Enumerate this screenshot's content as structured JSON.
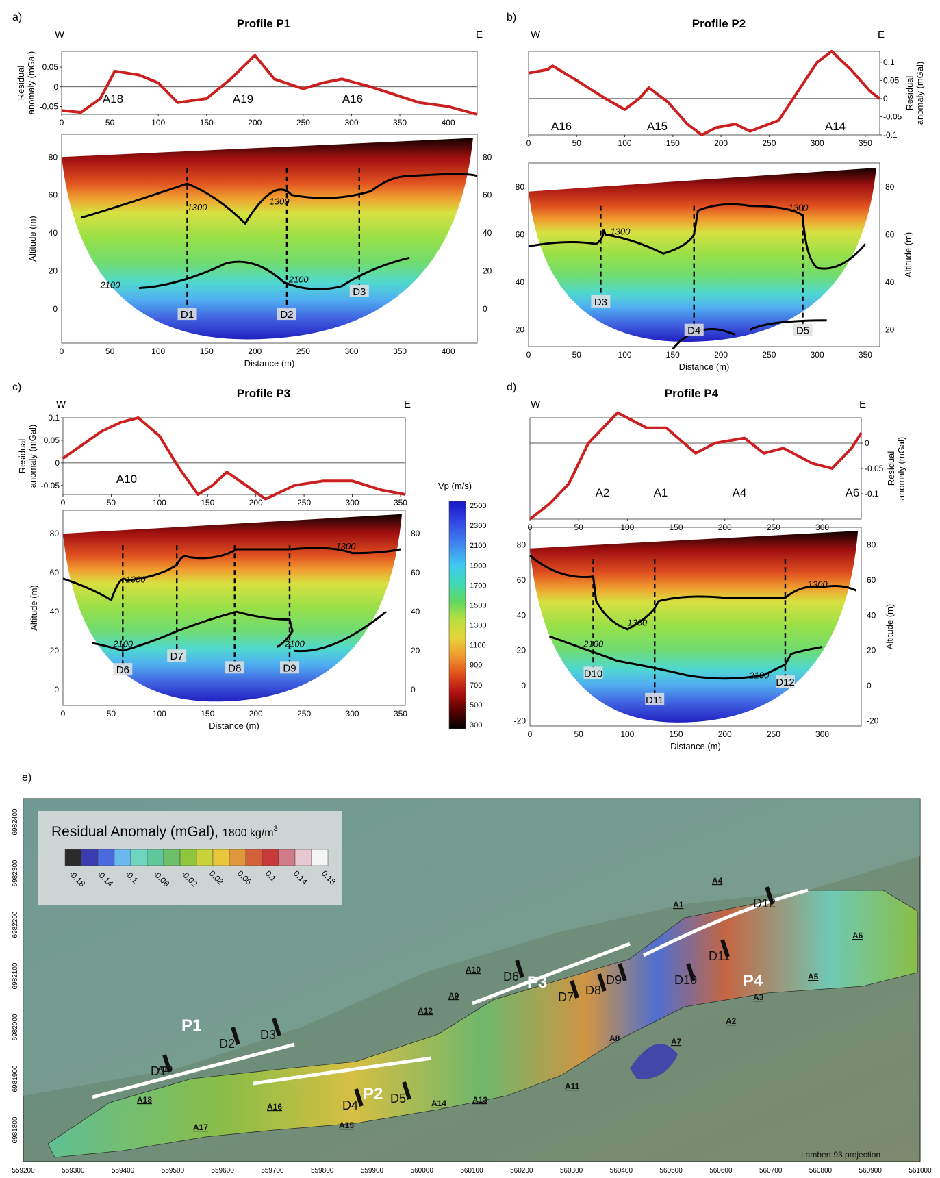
{
  "panels": [
    {
      "letter": "a)",
      "title": "Profile P1",
      "west": "W",
      "east": "E",
      "grav_ylabel": "Residual anomaly (mGal)",
      "grav_yticks": [
        "0.05",
        "0",
        "-0.05"
      ],
      "grav_xticks": [
        "0",
        "50",
        "100",
        "150",
        "200",
        "250",
        "300",
        "350",
        "400"
      ],
      "anomalies": [
        "A18",
        "A19",
        "A16"
      ],
      "sec_yticks": [
        "80",
        "60",
        "40",
        "20",
        "0"
      ],
      "sec_xticks": [
        "0",
        "50",
        "100",
        "150",
        "200",
        "250",
        "300",
        "350",
        "400"
      ],
      "sec_ylabel": "Altitude (m)",
      "sec_xlabel": "Distance (m)",
      "iso_labels": [
        "1300",
        "1300",
        "2100",
        "2100"
      ],
      "discs": [
        "D1",
        "D2",
        "D3"
      ]
    },
    {
      "letter": "b)",
      "title": "Profile P2",
      "west": "W",
      "east": "E",
      "grav_ylabel": "Residual anomaly (mGal)",
      "grav_yticks": [
        "0.1",
        "0.05",
        "0",
        "-0.05",
        "-0.1"
      ],
      "grav_xticks": [
        "0",
        "50",
        "100",
        "150",
        "200",
        "250",
        "300",
        "350"
      ],
      "anomalies": [
        "A16",
        "A15",
        "A14"
      ],
      "sec_yticks": [
        "80",
        "60",
        "40",
        "20"
      ],
      "sec_xticks": [
        "0",
        "50",
        "100",
        "150",
        "200",
        "250",
        "300",
        "350"
      ],
      "sec_ylabel": "Altitude (m)",
      "sec_xlabel": "Distance (m)",
      "iso_labels": [
        "1300",
        "1300"
      ],
      "discs": [
        "D3",
        "D4",
        "D5"
      ]
    },
    {
      "letter": "c)",
      "title": "Profile P3",
      "west": "W",
      "east": "E",
      "grav_ylabel": "Residual anomaly (mGal)",
      "grav_yticks": [
        "0.1",
        "0.05",
        "0",
        "-0.05"
      ],
      "grav_xticks": [
        "0",
        "50",
        "100",
        "150",
        "200",
        "250",
        "300",
        "350"
      ],
      "anomalies": [
        "A10"
      ],
      "sec_yticks": [
        "80",
        "60",
        "40",
        "20",
        "0"
      ],
      "sec_xticks": [
        "0",
        "50",
        "100",
        "150",
        "200",
        "250",
        "300",
        "350"
      ],
      "sec_ylabel": "Altitude (m)",
      "sec_xlabel": "Distance (m)",
      "iso_labels": [
        "1300",
        "1300",
        "2100",
        "2100"
      ],
      "discs": [
        "D6",
        "D7",
        "D8",
        "D9"
      ]
    },
    {
      "letter": "d)",
      "title": "Profile P4",
      "west": "W",
      "east": "E",
      "grav_ylabel": "Residual anomaly (mGal)",
      "grav_yticks": [
        "0",
        "-0.05",
        "-0.1"
      ],
      "grav_xticks": [
        "0",
        "50",
        "100",
        "150",
        "200",
        "250",
        "300"
      ],
      "anomalies": [
        "A2",
        "A1",
        "A4",
        "A6"
      ],
      "sec_yticks": [
        "80",
        "60",
        "40",
        "20",
        "0",
        "-20"
      ],
      "sec_xticks": [
        "0",
        "50",
        "100",
        "150",
        "200",
        "250",
        "300"
      ],
      "sec_ylabel": "Altitude (m)",
      "sec_xlabel": "Distance (m)",
      "iso_labels": [
        "1300",
        "1300",
        "2100",
        "2100"
      ],
      "discs": [
        "D10",
        "D11",
        "D12"
      ]
    }
  ],
  "colorbar": {
    "title": "Vp (m/s)",
    "ticks": [
      "2500",
      "2300",
      "2100",
      "1900",
      "1700",
      "1500",
      "1300",
      "1100",
      "900",
      "700",
      "500",
      "300"
    ]
  },
  "map": {
    "letter": "e)",
    "legend_title": "Residual Anomaly (mGal),",
    "legend_density": "1800 kg/m",
    "legend_sup": "3",
    "legend_ticks": [
      "-0.18",
      "-0.14",
      "-0.1",
      "-0.06",
      "-0.02",
      "0.02",
      "0.06",
      "0.1",
      "0.14",
      "0.18"
    ],
    "legend_colors": [
      "#2b2b2b",
      "#3b3bb0",
      "#4a6ae0",
      "#69b8ee",
      "#6fd4c0",
      "#5fc89a",
      "#6fbf6a",
      "#8ec63f",
      "#c8d23a",
      "#e8c83a",
      "#e0963a",
      "#d4603a",
      "#c83a3a",
      "#d07a8a",
      "#e8c8d0",
      "#f5f5f5"
    ],
    "x_ticks": [
      "559200",
      "559300",
      "559400",
      "559500",
      "559600",
      "559700",
      "559800",
      "559900",
      "560000",
      "560100",
      "560200",
      "560300",
      "560400",
      "560500",
      "560600",
      "560700",
      "560800",
      "560900",
      "561000"
    ],
    "y_ticks": [
      "6982400",
      "6982300",
      "6982200",
      "6982100",
      "6982000",
      "6981900",
      "6981800"
    ],
    "profile_labels": [
      "P1",
      "P2",
      "P3",
      "P4"
    ],
    "disc_labels": [
      "D1",
      "D2",
      "D3",
      "D4",
      "D5",
      "D6",
      "D7",
      "D8",
      "D9",
      "D10",
      "D11",
      "D12"
    ],
    "anomaly_labels": [
      "A1",
      "A2",
      "A3",
      "A4",
      "A5",
      "A6",
      "A7",
      "A8",
      "A9",
      "A10",
      "A11",
      "A12",
      "A13",
      "A14",
      "A15",
      "A16",
      "A17",
      "A18",
      "A19"
    ],
    "projection": "Lambert 93 projection"
  },
  "chart_data": [
    {
      "type": "line",
      "title": "Profile P1",
      "ylabel": "Residual anomaly (mGal)",
      "xlim": [
        0,
        430
      ],
      "ylim": [
        -0.07,
        0.09
      ],
      "series": [
        {
          "values": [
            [
              0,
              -0.06
            ],
            [
              20,
              -0.065
            ],
            [
              40,
              -0.03
            ],
            [
              55,
              0.04
            ],
            [
              80,
              0.03
            ],
            [
              100,
              0.01
            ],
            [
              120,
              -0.04
            ],
            [
              150,
              -0.03
            ],
            [
              175,
              0.02
            ],
            [
              200,
              0.08
            ],
            [
              220,
              0.02
            ],
            [
              250,
              -0.005
            ],
            [
              270,
              0.01
            ],
            [
              290,
              0.02
            ],
            [
              320,
              0.0
            ],
            [
              345,
              -0.02
            ],
            [
              370,
              -0.04
            ],
            [
              400,
              -0.05
            ],
            [
              430,
              -0.07
            ]
          ]
        }
      ]
    },
    {
      "type": "line",
      "title": "Profile P2",
      "ylabel": "Residual anomaly (mGal)",
      "xlim": [
        0,
        365
      ],
      "ylim": [
        -0.1,
        0.13
      ],
      "series": [
        {
          "values": [
            [
              0,
              0.07
            ],
            [
              20,
              0.08
            ],
            [
              25,
              0.09
            ],
            [
              50,
              0.05
            ],
            [
              80,
              0.0
            ],
            [
              100,
              -0.03
            ],
            [
              115,
              0.0
            ],
            [
              125,
              0.03
            ],
            [
              145,
              -0.01
            ],
            [
              165,
              -0.07
            ],
            [
              180,
              -0.1
            ],
            [
              195,
              -0.08
            ],
            [
              215,
              -0.07
            ],
            [
              230,
              -0.09
            ],
            [
              260,
              -0.06
            ],
            [
              280,
              0.02
            ],
            [
              300,
              0.1
            ],
            [
              315,
              0.13
            ],
            [
              335,
              0.08
            ],
            [
              355,
              0.02
            ],
            [
              365,
              0.0
            ]
          ]
        }
      ]
    },
    {
      "type": "line",
      "title": "Profile P3",
      "ylabel": "Residual anomaly (mGal)",
      "xlim": [
        0,
        355
      ],
      "ylim": [
        -0.07,
        0.1
      ],
      "series": [
        {
          "values": [
            [
              0,
              0.01
            ],
            [
              20,
              0.04
            ],
            [
              40,
              0.07
            ],
            [
              60,
              0.09
            ],
            [
              78,
              0.1
            ],
            [
              100,
              0.06
            ],
            [
              120,
              -0.01
            ],
            [
              140,
              -0.07
            ],
            [
              155,
              -0.05
            ],
            [
              170,
              -0.02
            ],
            [
              190,
              -0.05
            ],
            [
              210,
              -0.08
            ],
            [
              240,
              -0.05
            ],
            [
              270,
              -0.04
            ],
            [
              300,
              -0.04
            ],
            [
              330,
              -0.06
            ],
            [
              355,
              -0.07
            ]
          ]
        }
      ]
    },
    {
      "type": "line",
      "title": "Profile P4",
      "ylabel": "Residual anomaly (mGal)",
      "xlim": [
        0,
        340
      ],
      "ylim": [
        -0.15,
        0.05
      ],
      "series": [
        {
          "values": [
            [
              0,
              -0.15
            ],
            [
              20,
              -0.12
            ],
            [
              40,
              -0.08
            ],
            [
              60,
              0.0
            ],
            [
              90,
              0.06
            ],
            [
              120,
              0.03
            ],
            [
              140,
              0.03
            ],
            [
              170,
              -0.02
            ],
            [
              190,
              0.0
            ],
            [
              220,
              0.01
            ],
            [
              240,
              -0.02
            ],
            [
              260,
              -0.01
            ],
            [
              290,
              -0.04
            ],
            [
              310,
              -0.05
            ],
            [
              330,
              -0.01
            ],
            [
              340,
              0.02
            ]
          ]
        }
      ]
    }
  ]
}
